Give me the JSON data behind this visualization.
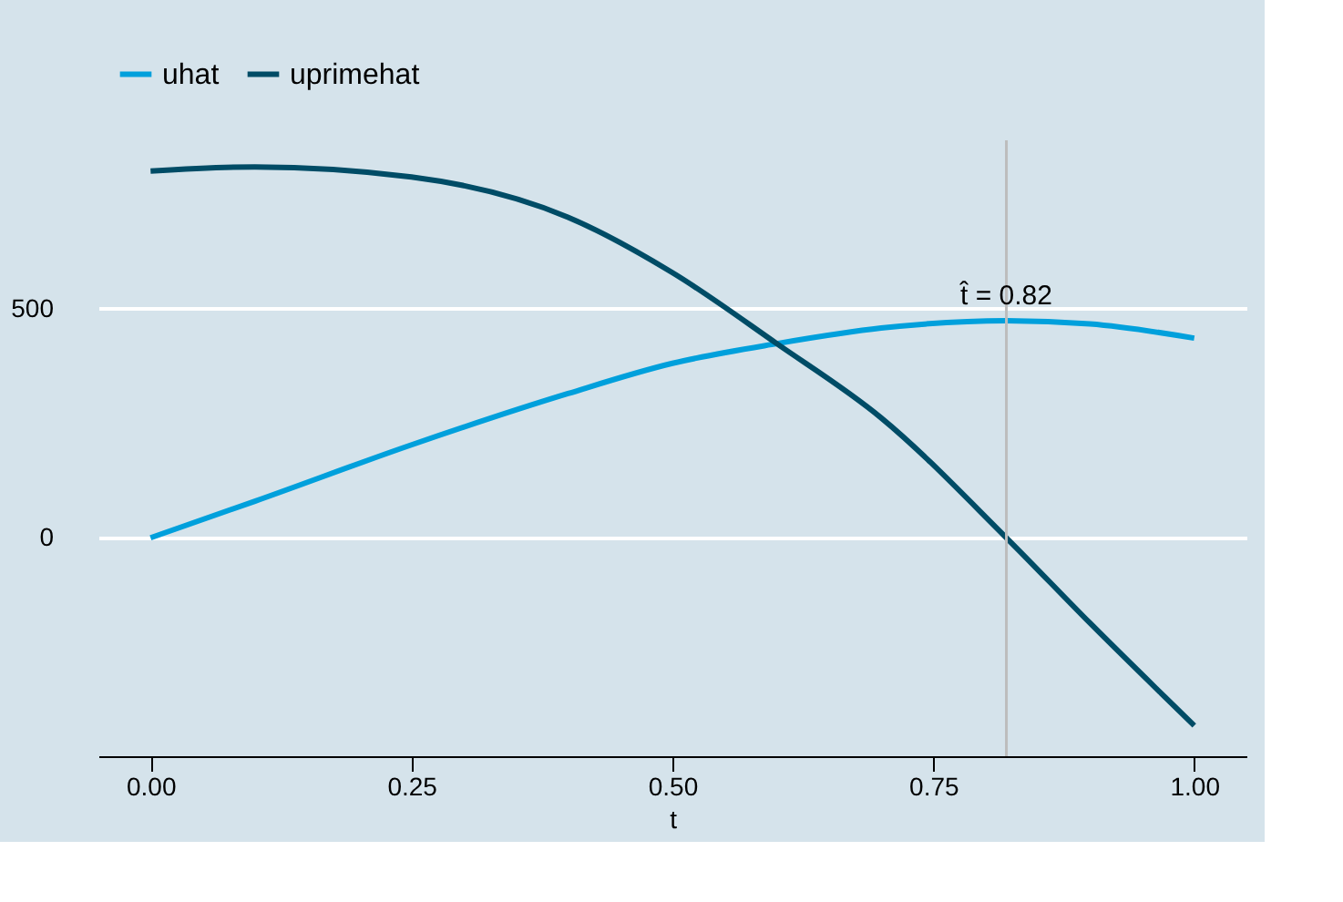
{
  "chart_data": {
    "type": "line",
    "xlabel": "t",
    "x": [
      0,
      0.1,
      0.25,
      0.4,
      0.5,
      0.6,
      0.7,
      0.82,
      0.9,
      1.0
    ],
    "series": [
      {
        "name": "uhat",
        "color": "#00a0dc",
        "values": [
          0,
          80,
          203,
          315,
          381,
          424,
          458,
          474,
          467,
          436
        ]
      },
      {
        "name": "uprimehat",
        "color": "#004c66",
        "values": [
          801,
          810,
          788,
          700,
          579,
          424,
          262,
          0,
          -186,
          -410
        ]
      }
    ],
    "xlim": [
      -0.05,
      1.05
    ],
    "xticks": [
      {
        "value": 0,
        "label": "0.00"
      },
      {
        "value": 0.25,
        "label": "0.25"
      },
      {
        "value": 0.5,
        "label": "0.50"
      },
      {
        "value": 0.75,
        "label": "0.75"
      },
      {
        "value": 1.0,
        "label": "1.00"
      }
    ],
    "ylim": [
      -477,
      868
    ],
    "yticks": [
      0,
      500
    ],
    "ref_lines": [
      {
        "axis": "x",
        "value": 0.82,
        "label": "t̂ = 0.82",
        "color": "#bdbdbd"
      }
    ],
    "grid": "y",
    "legend": "top",
    "line_style": "solid",
    "marker": "none"
  }
}
